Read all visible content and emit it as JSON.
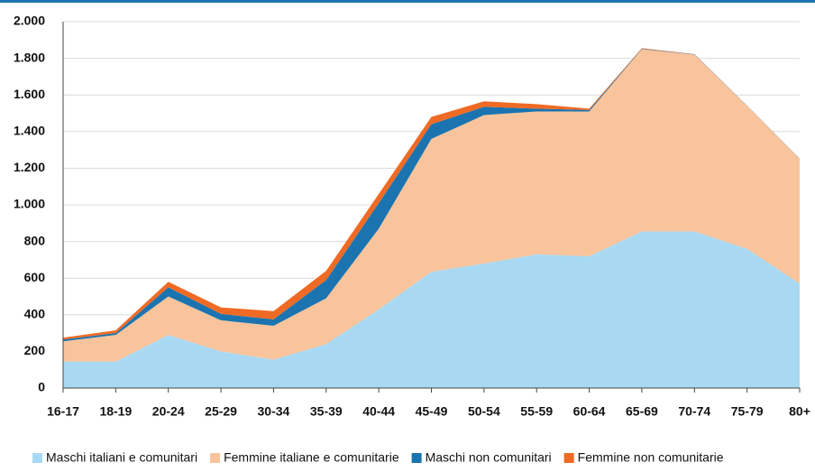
{
  "chart_data": {
    "type": "stacked-area",
    "categories": [
      "16-17",
      "18-19",
      "20-24",
      "25-29",
      "30-34",
      "35-39",
      "40-44",
      "45-49",
      "50-54",
      "55-59",
      "60-64",
      "65-69",
      "70-74",
      "75-79",
      "80+"
    ],
    "series": [
      {
        "name": "Maschi italiani e comunitari",
        "color": "#a9d9f2",
        "values": [
          145,
          145,
          290,
          200,
          155,
          240,
          430,
          635,
          680,
          730,
          720,
          855,
          855,
          760,
          570
        ]
      },
      {
        "name": "Femmine italiane e comunitarie",
        "color": "#f9c49c",
        "values": [
          110,
          145,
          210,
          170,
          185,
          250,
          440,
          725,
          810,
          780,
          790,
          995,
          965,
          780,
          680
        ]
      },
      {
        "name": "Maschi non comunitari",
        "color": "#1b74b0",
        "values": [
          10,
          10,
          50,
          35,
          35,
          100,
          140,
          80,
          45,
          15,
          8,
          2,
          2,
          1,
          1
        ]
      },
      {
        "name": "Femmine non comunitarie",
        "color": "#ef6a24",
        "values": [
          10,
          15,
          30,
          35,
          45,
          50,
          50,
          40,
          30,
          25,
          7,
          3,
          1,
          1,
          1
        ]
      }
    ],
    "ylim": [
      0,
      2000
    ],
    "yticks": [
      0,
      200,
      400,
      600,
      800,
      {
        "value": 1000,
        "label": "1.000"
      },
      {
        "value": 1200,
        "label": "1.200"
      },
      {
        "value": 1400,
        "label": "1.400"
      },
      {
        "value": 1600,
        "label": "1.600"
      },
      {
        "value": 1800,
        "label": "1.800"
      },
      {
        "value": 2000,
        "label": "2.000"
      }
    ],
    "grid": true
  }
}
